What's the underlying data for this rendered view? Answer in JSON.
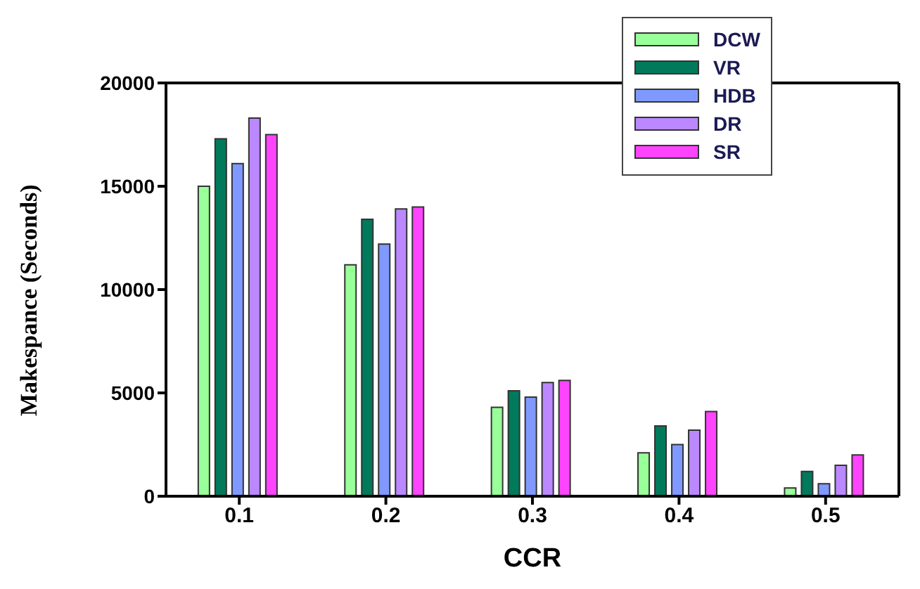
{
  "chart_data": {
    "type": "bar",
    "xlabel": "CCR",
    "ylabel": "Makespance (Seconds)",
    "categories": [
      "0.1",
      "0.2",
      "0.3",
      "0.4",
      "0.5"
    ],
    "series": [
      {
        "name": "DCW",
        "color": "#99ff99",
        "values": [
          15000,
          11200,
          4300,
          2100,
          400
        ]
      },
      {
        "name": "VR",
        "color": "#007a5a",
        "values": [
          17300,
          13400,
          5100,
          3400,
          1200
        ]
      },
      {
        "name": "HDB",
        "color": "#8099ff",
        "values": [
          16100,
          12200,
          4800,
          2500,
          600
        ]
      },
      {
        "name": "DR",
        "color": "#bb88ff",
        "values": [
          18300,
          13900,
          5500,
          3200,
          1500
        ]
      },
      {
        "name": "SR",
        "color": "#ff44ff",
        "values": [
          17500,
          14000,
          5600,
          4100,
          2000
        ]
      }
    ],
    "ylim": [
      0,
      20000
    ],
    "yticks": [
      0,
      5000,
      10000,
      15000,
      20000
    ],
    "grid": false,
    "legend": "top right"
  }
}
